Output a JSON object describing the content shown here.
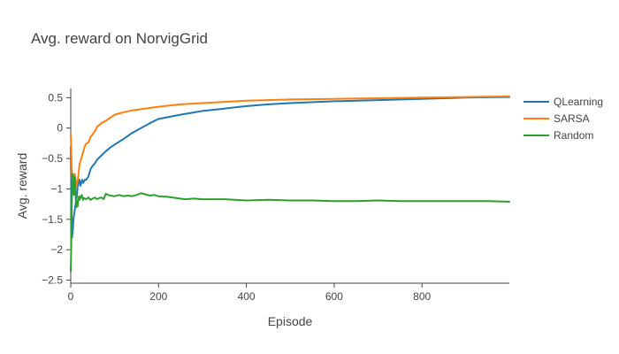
{
  "chart_data": {
    "type": "line",
    "title": "Avg. reward on NorvigGrid",
    "xlabel": "Episode",
    "ylabel": "Avg. reward",
    "xlim": [
      0,
      999
    ],
    "ylim": [
      -2.55,
      0.65
    ],
    "x_ticks": [
      0,
      200,
      400,
      600,
      800
    ],
    "y_ticks": [
      0.5,
      0,
      -0.5,
      -1,
      -1.5,
      -2,
      -2.5
    ],
    "y_tick_labels": [
      "0.5",
      "0",
      "−0.5",
      "−1",
      "−1.5",
      "−2",
      "−2.5"
    ],
    "grid": false,
    "legend_position": "top-right",
    "series": [
      {
        "name": "QLearning",
        "color": "#1f77b4",
        "points": [
          [
            0,
            -0.3
          ],
          [
            1,
            -0.9
          ],
          [
            2,
            -1.5
          ],
          [
            3,
            -1.8
          ],
          [
            4,
            -1.7
          ],
          [
            5,
            -1.65
          ],
          [
            6,
            -1.5
          ],
          [
            8,
            -1.4
          ],
          [
            10,
            -1.3
          ],
          [
            12,
            -1.2
          ],
          [
            14,
            -1.1
          ],
          [
            16,
            -0.95
          ],
          [
            18,
            -0.9
          ],
          [
            20,
            -0.85
          ],
          [
            22,
            -0.95
          ],
          [
            24,
            -0.9
          ],
          [
            26,
            -0.85
          ],
          [
            28,
            -0.9
          ],
          [
            30,
            -0.88
          ],
          [
            32,
            -0.85
          ],
          [
            35,
            -0.85
          ],
          [
            40,
            -0.8
          ],
          [
            45,
            -0.68
          ],
          [
            50,
            -0.62
          ],
          [
            55,
            -0.58
          ],
          [
            60,
            -0.52
          ],
          [
            70,
            -0.45
          ],
          [
            80,
            -0.38
          ],
          [
            90,
            -0.32
          ],
          [
            100,
            -0.27
          ],
          [
            120,
            -0.18
          ],
          [
            140,
            -0.08
          ],
          [
            160,
            0.0
          ],
          [
            180,
            0.08
          ],
          [
            200,
            0.15
          ],
          [
            250,
            0.22
          ],
          [
            300,
            0.28
          ],
          [
            350,
            0.32
          ],
          [
            400,
            0.36
          ],
          [
            450,
            0.39
          ],
          [
            500,
            0.41
          ],
          [
            600,
            0.44
          ],
          [
            700,
            0.46
          ],
          [
            800,
            0.48
          ],
          [
            900,
            0.5
          ],
          [
            999,
            0.51
          ]
        ]
      },
      {
        "name": "SARSA",
        "color": "#ff7f0e",
        "points": [
          [
            0,
            -0.1
          ],
          [
            1,
            -0.3
          ],
          [
            2,
            -0.6
          ],
          [
            3,
            -0.8
          ],
          [
            5,
            -0.9
          ],
          [
            7,
            -0.8
          ],
          [
            9,
            -0.75
          ],
          [
            11,
            -0.85
          ],
          [
            13,
            -0.95
          ],
          [
            15,
            -0.9
          ],
          [
            17,
            -0.8
          ],
          [
            20,
            -0.6
          ],
          [
            24,
            -0.5
          ],
          [
            28,
            -0.4
          ],
          [
            32,
            -0.3
          ],
          [
            36,
            -0.25
          ],
          [
            40,
            -0.24
          ],
          [
            45,
            -0.15
          ],
          [
            50,
            -0.1
          ],
          [
            55,
            -0.05
          ],
          [
            60,
            0.02
          ],
          [
            70,
            0.08
          ],
          [
            80,
            0.12
          ],
          [
            90,
            0.17
          ],
          [
            100,
            0.22
          ],
          [
            120,
            0.26
          ],
          [
            140,
            0.29
          ],
          [
            160,
            0.31
          ],
          [
            180,
            0.33
          ],
          [
            200,
            0.35
          ],
          [
            250,
            0.39
          ],
          [
            300,
            0.41
          ],
          [
            350,
            0.43
          ],
          [
            400,
            0.45
          ],
          [
            450,
            0.46
          ],
          [
            500,
            0.47
          ],
          [
            600,
            0.48
          ],
          [
            700,
            0.49
          ],
          [
            800,
            0.5
          ],
          [
            900,
            0.51
          ],
          [
            999,
            0.52
          ]
        ]
      },
      {
        "name": "Random",
        "color": "#2ca02c",
        "points": [
          [
            0,
            -2.35
          ],
          [
            1,
            -2.0
          ],
          [
            2,
            -1.4
          ],
          [
            3,
            -1.0
          ],
          [
            4,
            -0.75
          ],
          [
            5,
            -0.85
          ],
          [
            6,
            -0.95
          ],
          [
            7,
            -1.1
          ],
          [
            8,
            -1.0
          ],
          [
            9,
            -0.8
          ],
          [
            10,
            -0.9
          ],
          [
            11,
            -1.1
          ],
          [
            12,
            -1.25
          ],
          [
            13,
            -1.3
          ],
          [
            14,
            -1.25
          ],
          [
            15,
            -1.2
          ],
          [
            16,
            -1.28
          ],
          [
            17,
            -1.2
          ],
          [
            18,
            -1.15
          ],
          [
            19,
            -1.12
          ],
          [
            20,
            -1.18
          ],
          [
            22,
            -1.15
          ],
          [
            25,
            -1.1
          ],
          [
            28,
            -1.18
          ],
          [
            30,
            -1.15
          ],
          [
            35,
            -1.17
          ],
          [
            40,
            -1.14
          ],
          [
            45,
            -1.18
          ],
          [
            50,
            -1.16
          ],
          [
            55,
            -1.14
          ],
          [
            60,
            -1.17
          ],
          [
            65,
            -1.15
          ],
          [
            70,
            -1.14
          ],
          [
            75,
            -1.17
          ],
          [
            80,
            -1.08
          ],
          [
            85,
            -1.1
          ],
          [
            90,
            -1.11
          ],
          [
            100,
            -1.12
          ],
          [
            110,
            -1.1
          ],
          [
            120,
            -1.12
          ],
          [
            130,
            -1.11
          ],
          [
            140,
            -1.12
          ],
          [
            150,
            -1.1
          ],
          [
            160,
            -1.07
          ],
          [
            170,
            -1.09
          ],
          [
            180,
            -1.11
          ],
          [
            190,
            -1.1
          ],
          [
            200,
            -1.12
          ],
          [
            220,
            -1.13
          ],
          [
            240,
            -1.15
          ],
          [
            260,
            -1.17
          ],
          [
            280,
            -1.16
          ],
          [
            300,
            -1.17
          ],
          [
            350,
            -1.17
          ],
          [
            400,
            -1.19
          ],
          [
            450,
            -1.18
          ],
          [
            500,
            -1.19
          ],
          [
            550,
            -1.19
          ],
          [
            600,
            -1.2
          ],
          [
            650,
            -1.2
          ],
          [
            700,
            -1.19
          ],
          [
            750,
            -1.2
          ],
          [
            800,
            -1.2
          ],
          [
            850,
            -1.2
          ],
          [
            900,
            -1.2
          ],
          [
            950,
            -1.2
          ],
          [
            999,
            -1.21
          ]
        ]
      }
    ]
  }
}
